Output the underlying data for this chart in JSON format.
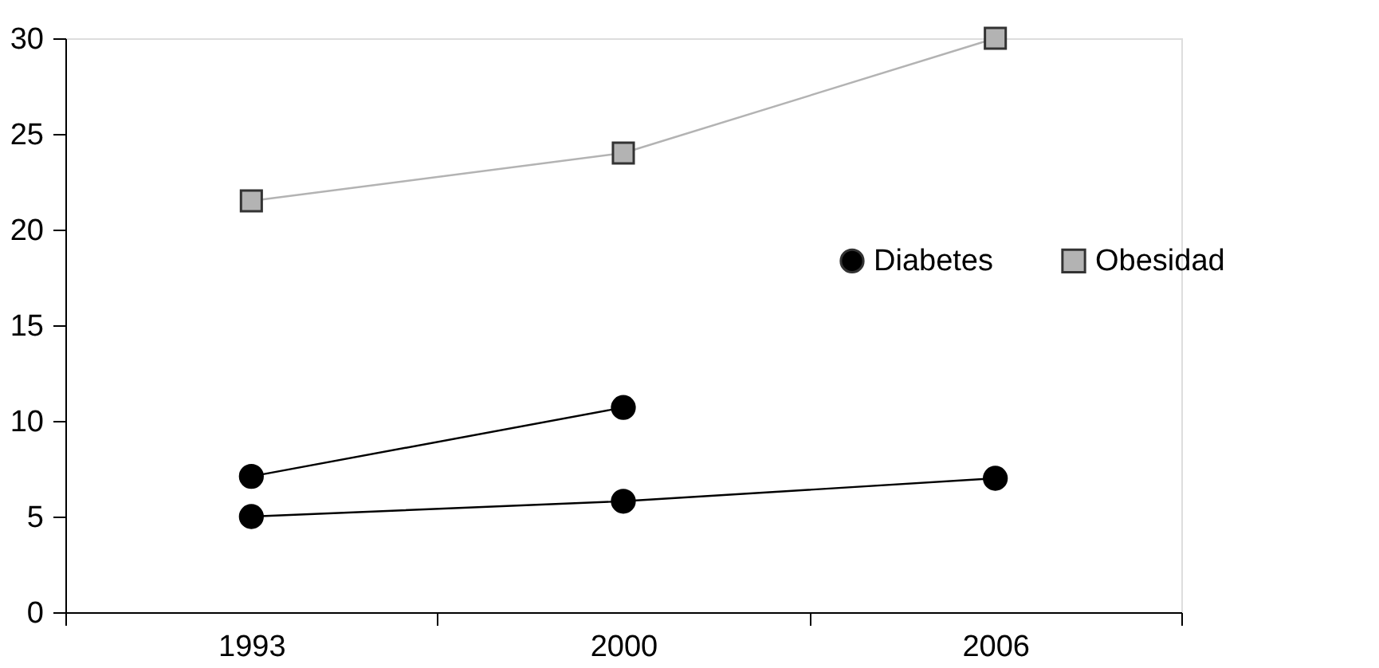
{
  "chart_data": {
    "type": "line",
    "categories": [
      "1993",
      "2000",
      "2006"
    ],
    "series": [
      {
        "name": "Diabetes",
        "color": "#000000",
        "marker": "circle",
        "values": [
          5.0,
          5.8,
          7.0
        ]
      },
      {
        "color": "#000000",
        "marker": "circle",
        "values": [
          7.1,
          10.7,
          null
        ]
      },
      {
        "name": "Obesidad",
        "color": "#b3b3b3",
        "marker": "square",
        "values": [
          21.5,
          24.0,
          30.0
        ]
      }
    ],
    "ylim": [
      0,
      30
    ],
    "yticks": [
      0,
      5,
      10,
      15,
      20,
      25,
      30
    ],
    "grid": false,
    "legend": "right"
  }
}
